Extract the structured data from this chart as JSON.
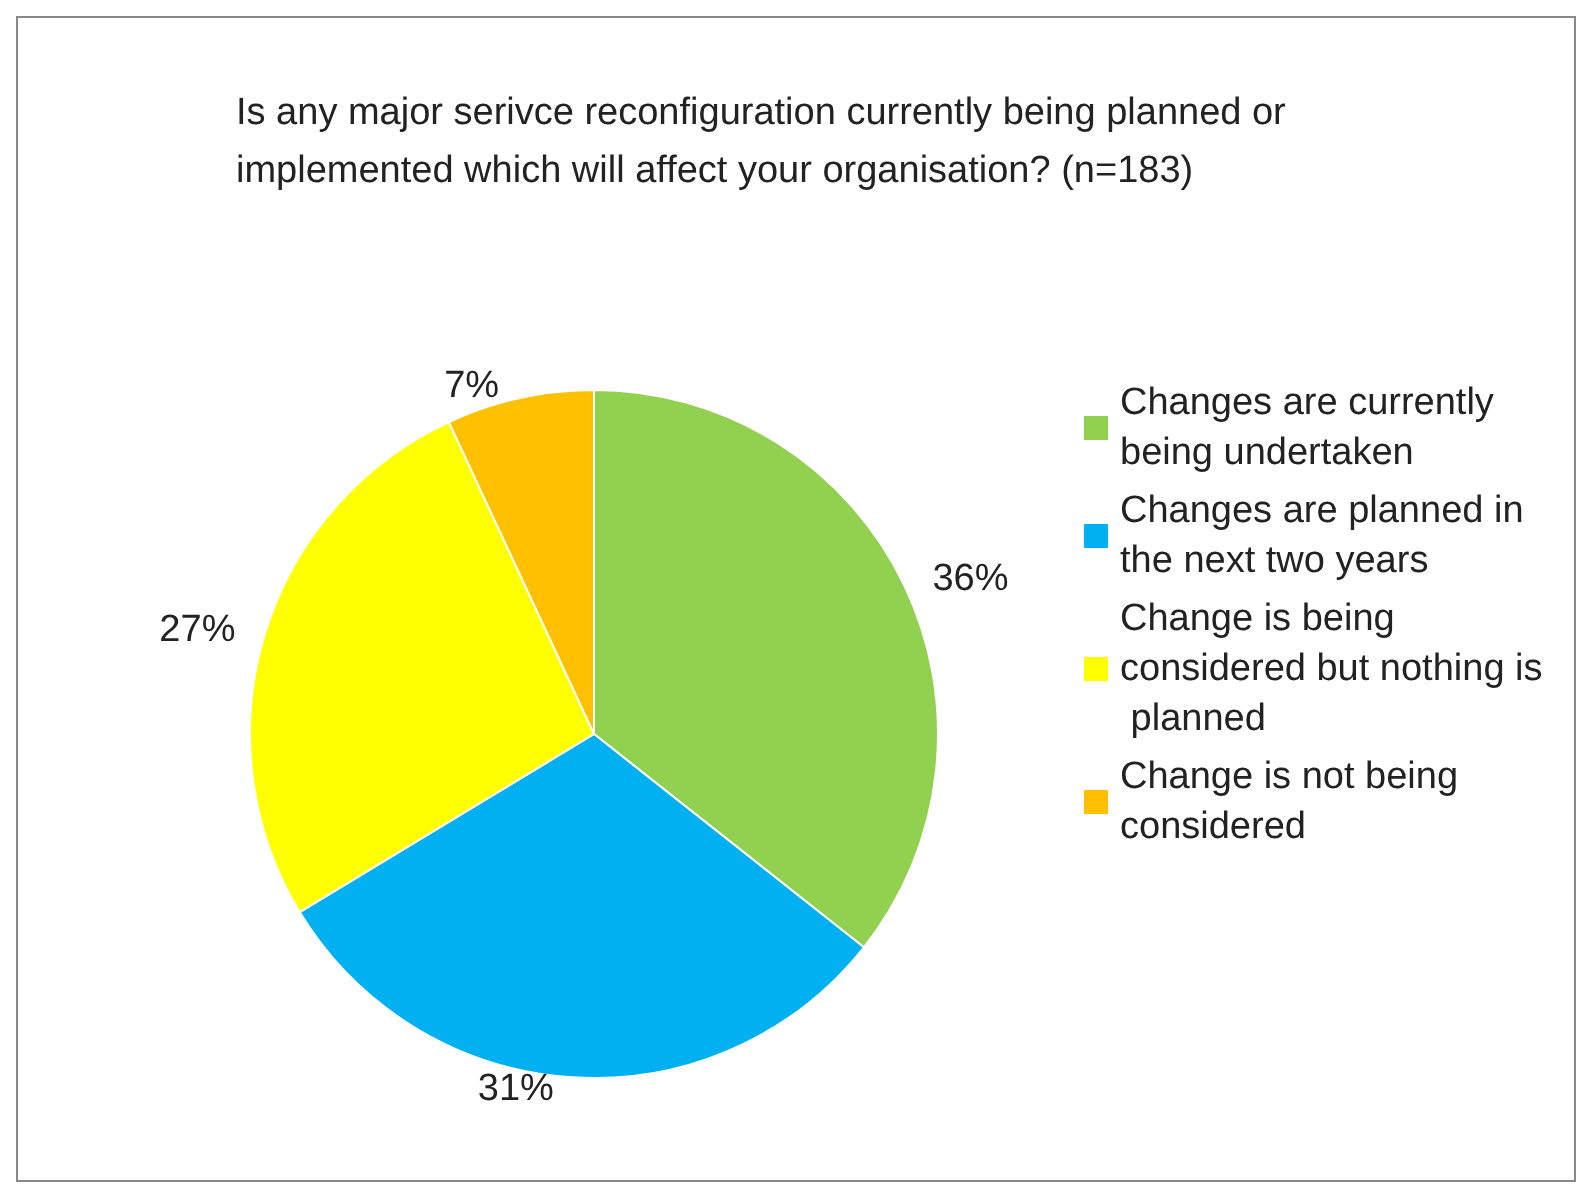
{
  "chart_data": {
    "type": "pie",
    "title": "Is any major serivce reconfiguration currently being planned or implemented which will affect your organisation? (n=183)",
    "categories": [
      "Changes are currently being undertaken",
      "Changes are planned in the next two years",
      "Change is being considered but nothing is planned",
      "Change is not being considered"
    ],
    "values": [
      36,
      31,
      27,
      7
    ],
    "colors": [
      "#92d050",
      "#00b0f0",
      "#ffff00",
      "#ffc000"
    ],
    "value_labels": [
      "36%",
      "31%",
      "27%",
      "7%"
    ],
    "legend": "right"
  }
}
